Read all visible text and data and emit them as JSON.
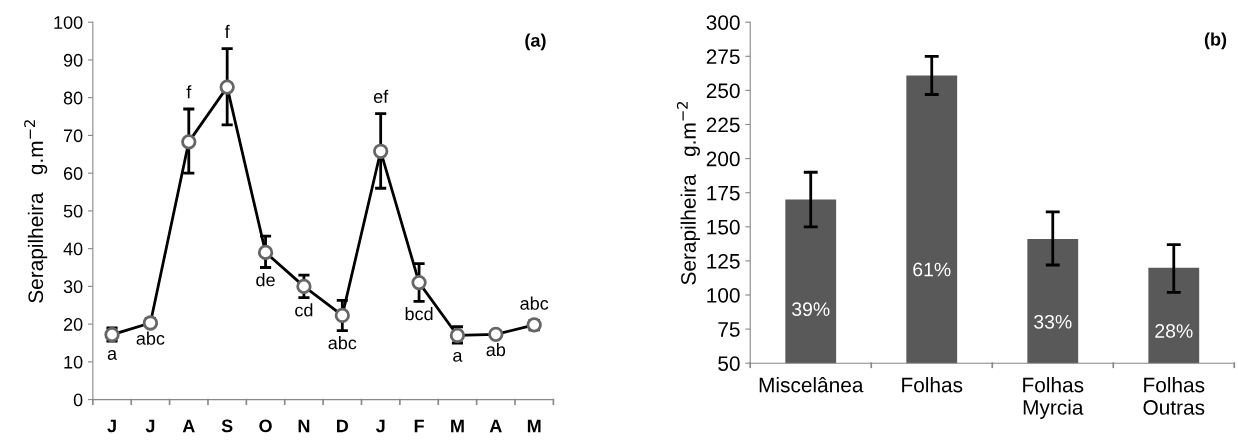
{
  "chart_data": [
    {
      "type": "line",
      "title": "(a)",
      "ylabel": "Serapilheira   g.m$^{−2}$",
      "categories": [
        "J",
        "J",
        "A",
        "S",
        "O",
        "N",
        "D",
        "J",
        "F",
        "M",
        "A",
        "M"
      ],
      "values": [
        17.2,
        20.3,
        68.3,
        82.8,
        39,
        30,
        22.3,
        65.8,
        31,
        17,
        17.3,
        19.8
      ],
      "errors": [
        [
          15.5,
          19
        ],
        [
          19.5,
          21.5
        ],
        [
          60,
          77
        ],
        [
          72.8,
          93
        ],
        [
          35,
          43.3
        ],
        [
          27,
          33
        ],
        [
          18.3,
          26.3
        ],
        [
          56,
          75.8
        ],
        [
          26,
          36
        ],
        [
          15,
          19.3
        ],
        [
          16.5,
          18
        ],
        [
          18.5,
          21
        ]
      ],
      "value_labels": [
        "a",
        "abc",
        "f",
        "f",
        "de",
        "cd",
        "abc",
        "ef",
        "bcd",
        "a",
        "ab",
        "abc"
      ],
      "color": "#000000",
      "marker": "circle",
      "line_style": "solid",
      "ylim": [
        0,
        100
      ],
      "yticks": [
        0,
        10,
        20,
        30,
        40,
        50,
        60,
        70,
        80,
        90,
        100
      ],
      "grid": false,
      "legend": false
    },
    {
      "type": "bar",
      "title": "(b)",
      "ylabel": "Serapilheira   g.m$^{−2}$",
      "categories": [
        "Miscelânea",
        "Folhas",
        "Folhas\nMyrcia",
        "Folhas\nOutras"
      ],
      "values": [
        170,
        261,
        141,
        120
      ],
      "errors": [
        [
          150,
          190
        ],
        [
          247,
          275
        ],
        [
          122,
          161
        ],
        [
          102,
          137
        ]
      ],
      "annotations": [
        "39%",
        "61%",
        "33%",
        "28%"
      ],
      "color": "#595959",
      "ylim": [
        50,
        300
      ],
      "yticks": [
        50,
        75,
        100,
        125,
        150,
        175,
        200,
        225,
        250,
        275,
        300
      ],
      "grid": false,
      "legend": false
    }
  ]
}
